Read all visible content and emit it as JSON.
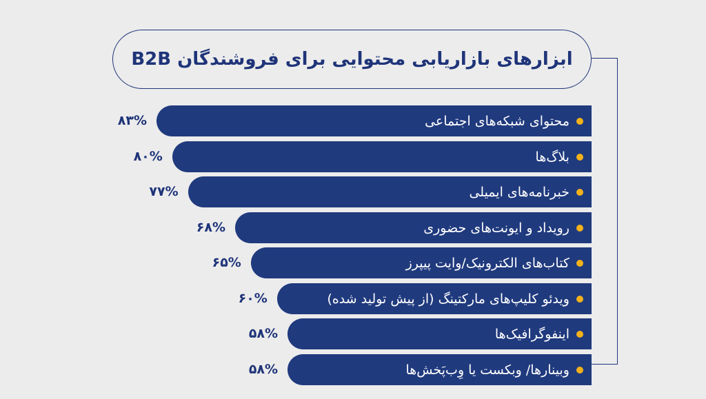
{
  "colors": {
    "background": "#ececec",
    "bar": "#203a7e",
    "dot": "#f3b21b",
    "text_dark": "#1f3479"
  },
  "chart_data": {
    "type": "bar",
    "orientation": "horizontal",
    "title": "ابزارهای بازاریابی محتوایی برای فروشندگان B2B",
    "categories": [
      "محتوای شبکه‌های اجتماعی",
      "بلاگ‌ها",
      "خبرنامه‌های ایمیلی",
      "رویداد و ایونت‌های حضوری",
      "کتاب‌های الکترونیک/وایت پیپرز",
      "ویدئو کلیپ‌های مارکتینگ (از پیش تولید شده)",
      "اینفوگرافیک‌ها",
      "وبینارها/ وبکست یا وِب‌پَخش‌ها"
    ],
    "values": [
      83,
      80,
      77,
      68,
      65,
      60,
      58,
      58
    ],
    "value_labels": [
      "۸۳%",
      "۸۰%",
      "۷۷%",
      "۶۸%",
      "۶۵%",
      "۶۰%",
      "۵۸%",
      "۵۸%"
    ],
    "unit": "%"
  }
}
